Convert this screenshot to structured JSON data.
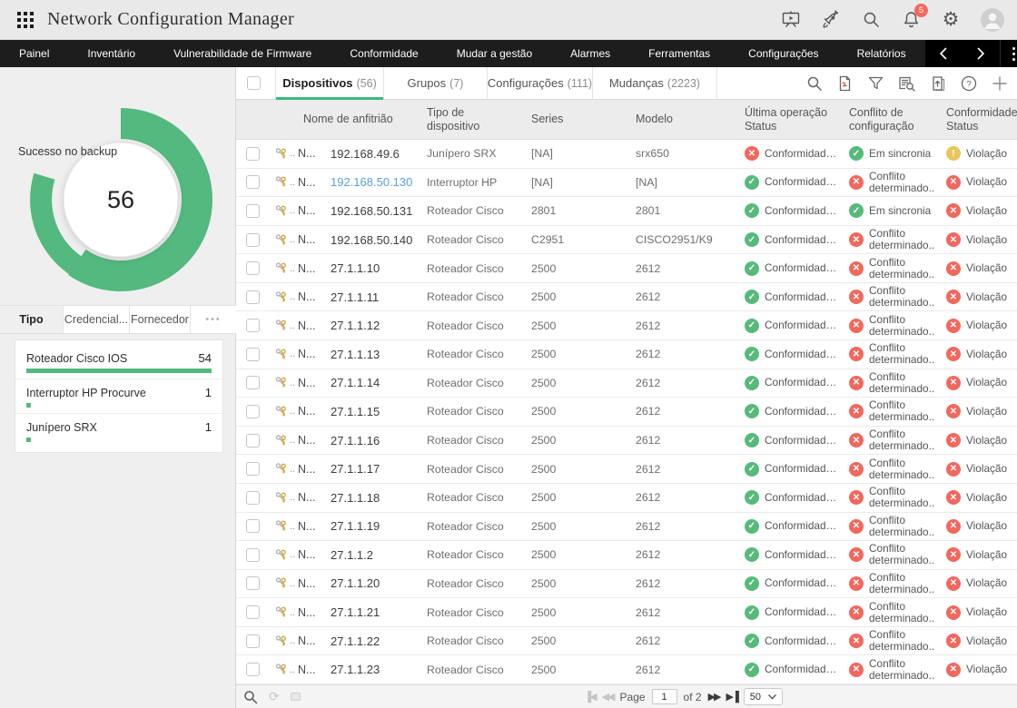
{
  "header": {
    "title": "Network Configuration Manager",
    "notification_count": "5"
  },
  "nav": {
    "items": [
      {
        "label": "Painel"
      },
      {
        "label": "Inventário"
      },
      {
        "label": "Vulnerabilidade de Firmware"
      },
      {
        "label": "Conformidade"
      },
      {
        "label": "Mudar a gestão"
      },
      {
        "label": "Alarmes"
      },
      {
        "label": "Ferramentas"
      },
      {
        "label": "Configurações"
      },
      {
        "label": "Relatórios"
      }
    ]
  },
  "sidebar": {
    "chart": {
      "label": "Sucesso no backup",
      "value": "56",
      "color": "#53b97e"
    },
    "tabs": [
      {
        "label": "Tipo",
        "active": true
      },
      {
        "label": "Credencial...",
        "active": false
      },
      {
        "label": "Fornecedor",
        "active": false
      }
    ],
    "more_label": "•••",
    "type_list": {
      "max": 54,
      "items": [
        {
          "name": "Roteador Cisco IOS",
          "value": 54
        },
        {
          "name": "Interruptor HP Procurve",
          "value": 1
        },
        {
          "name": "Junípero SRX",
          "value": 1
        }
      ]
    }
  },
  "chart_data": [
    {
      "type": "pie",
      "title": "Sucesso no backup",
      "center_value": 56,
      "series": [
        {
          "name": "Sucesso no backup",
          "values": [
            56
          ]
        }
      ],
      "legend_position": "none"
    },
    {
      "type": "bar",
      "categories": [
        "Roteador Cisco IOS",
        "Interruptor HP Procurve",
        "Junípero SRX"
      ],
      "values": [
        54,
        1,
        1
      ],
      "title": "Tipo",
      "xlabel": "",
      "ylabel": "",
      "ylim": [
        0,
        54
      ]
    }
  ],
  "main": {
    "tabs": [
      {
        "label": "Dispositivos",
        "count": "(56)",
        "active": true
      },
      {
        "label": "Grupos",
        "count": "(7)",
        "active": false
      },
      {
        "label": "Configurações",
        "count": "(111)",
        "active": false
      },
      {
        "label": "Mudanças",
        "count": "(2223)",
        "active": false
      }
    ],
    "toolbar_icons": [
      "search",
      "pdf-export",
      "filter",
      "config-search",
      "export-doc",
      "help",
      "add"
    ],
    "table": {
      "columns": [
        "Nome de anfitrião",
        "Tipo de dispositivo",
        "Series",
        "Modelo",
        "Última operação\nStatus",
        "Conflito de\nconfiguração",
        "Conformidade\nStatus"
      ],
      "row_prefix": {
        "keys_suffix": "..",
        "name": "N..."
      },
      "rows": [
        {
          "hostname": "192.168.49.6",
          "link": false,
          "type": "Junípero SRX",
          "series": "[NA]",
          "model": "srx650",
          "op": {
            "s": "err",
            "label": "Conformidade..."
          },
          "conflict": {
            "s": "ok",
            "label": "Em sincronia"
          },
          "comp": {
            "s": "warn",
            "label": "Violação"
          }
        },
        {
          "hostname": "192.168.50.130",
          "link": true,
          "type": "Interruptor HP",
          "series": "[NA]",
          "model": "[NA]",
          "op": {
            "s": "ok",
            "label": "Conformidade..."
          },
          "conflict": {
            "s": "err",
            "label": "Conflito determinado..."
          },
          "comp": {
            "s": "err",
            "label": "Violação"
          }
        },
        {
          "hostname": "192.168.50.131",
          "link": false,
          "type": "Roteador Cisco",
          "series": "2801",
          "model": "2801",
          "op": {
            "s": "ok",
            "label": "Conformidade..."
          },
          "conflict": {
            "s": "ok",
            "label": "Em sincronia"
          },
          "comp": {
            "s": "err",
            "label": "Violação"
          }
        },
        {
          "hostname": "192.168.50.140",
          "link": false,
          "type": "Roteador Cisco",
          "series": "C2951",
          "model": "CISCO2951/K9",
          "op": {
            "s": "ok",
            "label": "Conformidade..."
          },
          "conflict": {
            "s": "err",
            "label": "Conflito determinado..."
          },
          "comp": {
            "s": "err",
            "label": "Violação"
          }
        },
        {
          "hostname": "27.1.1.10",
          "link": false,
          "type": "Roteador Cisco",
          "series": "2500",
          "model": "2612",
          "op": {
            "s": "ok",
            "label": "Conformidade..."
          },
          "conflict": {
            "s": "err",
            "label": "Conflito determinado..."
          },
          "comp": {
            "s": "err",
            "label": "Violação"
          }
        },
        {
          "hostname": "27.1.1.11",
          "link": false,
          "type": "Roteador Cisco",
          "series": "2500",
          "model": "2612",
          "op": {
            "s": "ok",
            "label": "Conformidade..."
          },
          "conflict": {
            "s": "err",
            "label": "Conflito determinado..."
          },
          "comp": {
            "s": "err",
            "label": "Violação"
          }
        },
        {
          "hostname": "27.1.1.12",
          "link": false,
          "type": "Roteador Cisco",
          "series": "2500",
          "model": "2612",
          "op": {
            "s": "ok",
            "label": "Conformidade..."
          },
          "conflict": {
            "s": "err",
            "label": "Conflito determinado..."
          },
          "comp": {
            "s": "err",
            "label": "Violação"
          }
        },
        {
          "hostname": "27.1.1.13",
          "link": false,
          "type": "Roteador Cisco",
          "series": "2500",
          "model": "2612",
          "op": {
            "s": "ok",
            "label": "Conformidade..."
          },
          "conflict": {
            "s": "err",
            "label": "Conflito determinado..."
          },
          "comp": {
            "s": "err",
            "label": "Violação"
          }
        },
        {
          "hostname": "27.1.1.14",
          "link": false,
          "type": "Roteador Cisco",
          "series": "2500",
          "model": "2612",
          "op": {
            "s": "ok",
            "label": "Conformidade..."
          },
          "conflict": {
            "s": "err",
            "label": "Conflito determinado..."
          },
          "comp": {
            "s": "err",
            "label": "Violação"
          }
        },
        {
          "hostname": "27.1.1.15",
          "link": false,
          "type": "Roteador Cisco",
          "series": "2500",
          "model": "2612",
          "op": {
            "s": "ok",
            "label": "Conformidade..."
          },
          "conflict": {
            "s": "err",
            "label": "Conflito determinado..."
          },
          "comp": {
            "s": "err",
            "label": "Violação"
          }
        },
        {
          "hostname": "27.1.1.16",
          "link": false,
          "type": "Roteador Cisco",
          "series": "2500",
          "model": "2612",
          "op": {
            "s": "ok",
            "label": "Conformidade..."
          },
          "conflict": {
            "s": "err",
            "label": "Conflito determinado..."
          },
          "comp": {
            "s": "err",
            "label": "Violação"
          }
        },
        {
          "hostname": "27.1.1.17",
          "link": false,
          "type": "Roteador Cisco",
          "series": "2500",
          "model": "2612",
          "op": {
            "s": "ok",
            "label": "Conformidade..."
          },
          "conflict": {
            "s": "err",
            "label": "Conflito determinado..."
          },
          "comp": {
            "s": "err",
            "label": "Violação"
          }
        },
        {
          "hostname": "27.1.1.18",
          "link": false,
          "type": "Roteador Cisco",
          "series": "2500",
          "model": "2612",
          "op": {
            "s": "ok",
            "label": "Conformidade..."
          },
          "conflict": {
            "s": "err",
            "label": "Conflito determinado..."
          },
          "comp": {
            "s": "err",
            "label": "Violação"
          }
        },
        {
          "hostname": "27.1.1.19",
          "link": false,
          "type": "Roteador Cisco",
          "series": "2500",
          "model": "2612",
          "op": {
            "s": "ok",
            "label": "Conformidade..."
          },
          "conflict": {
            "s": "err",
            "label": "Conflito determinado..."
          },
          "comp": {
            "s": "err",
            "label": "Violação"
          }
        },
        {
          "hostname": "27.1.1.2",
          "link": false,
          "type": "Roteador Cisco",
          "series": "2500",
          "model": "2612",
          "op": {
            "s": "ok",
            "label": "Conformidade..."
          },
          "conflict": {
            "s": "err",
            "label": "Conflito determinado..."
          },
          "comp": {
            "s": "err",
            "label": "Violação"
          }
        },
        {
          "hostname": "27.1.1.20",
          "link": false,
          "type": "Roteador Cisco",
          "series": "2500",
          "model": "2612",
          "op": {
            "s": "ok",
            "label": "Conformidade..."
          },
          "conflict": {
            "s": "err",
            "label": "Conflito determinado..."
          },
          "comp": {
            "s": "err",
            "label": "Violação"
          }
        },
        {
          "hostname": "27.1.1.21",
          "link": false,
          "type": "Roteador Cisco",
          "series": "2500",
          "model": "2612",
          "op": {
            "s": "ok",
            "label": "Conformidade..."
          },
          "conflict": {
            "s": "err",
            "label": "Conflito determinado..."
          },
          "comp": {
            "s": "err",
            "label": "Violação"
          }
        },
        {
          "hostname": "27.1.1.22",
          "link": false,
          "type": "Roteador Cisco",
          "series": "2500",
          "model": "2612",
          "op": {
            "s": "ok",
            "label": "Conformidade..."
          },
          "conflict": {
            "s": "err",
            "label": "Conflito determinado..."
          },
          "comp": {
            "s": "err",
            "label": "Violação"
          }
        },
        {
          "hostname": "27.1.1.23",
          "link": false,
          "type": "Roteador Cisco",
          "series": "2500",
          "model": "2612",
          "op": {
            "s": "ok",
            "label": "Conformidade..."
          },
          "conflict": {
            "s": "err",
            "label": "Conflito determinado..."
          },
          "comp": {
            "s": "err",
            "label": "Violação"
          }
        }
      ]
    },
    "pagination": {
      "page_label": "Page",
      "page_value": "1",
      "of_label": "of 2",
      "page_size": "50"
    }
  },
  "colors": {
    "green": "#53b97e",
    "red": "#f0685e",
    "yellow": "#e7c65c",
    "link": "#58a0d7"
  }
}
